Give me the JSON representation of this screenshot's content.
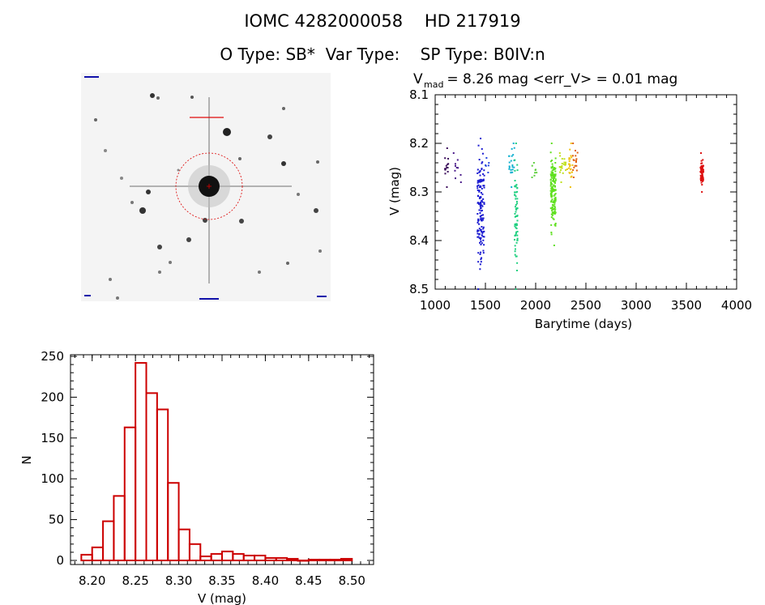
{
  "header": {
    "title": "IOMC 4282000058    HD 217919",
    "subtitle": "O Type: SB*  Var Type:    SP Type: B0IV:n"
  },
  "colors": {
    "histogram": "#cc0000",
    "aperture": "#dd0000",
    "finder_bg": "#f4f4f4",
    "finder_label": "#1111aa"
  },
  "finder": {
    "icon": "star-field-image"
  },
  "chart_data": [
    {
      "type": "scatter",
      "title_prefix": "V",
      "title_sub": "mad",
      "title_rest": " = 8.26 mag <err_V> = 0.01 mag",
      "xlabel": "Barytime (days)",
      "ylabel": "V (mag)",
      "xlim": [
        1000,
        4000
      ],
      "ylim": [
        8.5,
        8.1
      ],
      "y_inverted": true,
      "xticks": [
        1000,
        1500,
        2000,
        2500,
        3000,
        3500,
        4000
      ],
      "yticks": [
        8.1,
        8.2,
        8.3,
        8.4,
        8.5
      ],
      "color_scale": "rainbow by time",
      "groups": [
        {
          "x": [
            1090,
            1150
          ],
          "ymin": 8.21,
          "ymax": 8.29,
          "n": 14,
          "color": "#3a0a5a"
        },
        {
          "x": [
            1180,
            1260
          ],
          "ymin": 8.22,
          "ymax": 8.28,
          "n": 10,
          "color": "#4a1a8a"
        },
        {
          "x": [
            1420,
            1490
          ],
          "ymin": 8.19,
          "ymax": 8.5,
          "n": 140,
          "color": "#1a1ad0"
        },
        {
          "x": [
            1500,
            1540
          ],
          "ymin": 8.23,
          "ymax": 8.26,
          "n": 6,
          "color": "#2244dd"
        },
        {
          "x": [
            1720,
            1790
          ],
          "ymin": 8.2,
          "ymax": 8.29,
          "n": 22,
          "color": "#10b0d0"
        },
        {
          "x": [
            1790,
            1820
          ],
          "ymin": 8.2,
          "ymax": 8.5,
          "n": 70,
          "color": "#20d080"
        },
        {
          "x": [
            1960,
            2010
          ],
          "ymin": 8.24,
          "ymax": 8.27,
          "n": 8,
          "color": "#60d040"
        },
        {
          "x": [
            2150,
            2200
          ],
          "ymin": 8.2,
          "ymax": 8.41,
          "n": 160,
          "color": "#60e020"
        },
        {
          "x": [
            2240,
            2300
          ],
          "ymin": 8.22,
          "ymax": 8.28,
          "n": 22,
          "color": "#c0e020"
        },
        {
          "x": [
            2310,
            2370
          ],
          "ymin": 8.2,
          "ymax": 8.29,
          "n": 24,
          "color": "#f0c010"
        },
        {
          "x": [
            2370,
            2420
          ],
          "ymin": 8.2,
          "ymax": 8.27,
          "n": 16,
          "color": "#e06010"
        },
        {
          "x": [
            3640,
            3670
          ],
          "ymin": 8.22,
          "ymax": 8.3,
          "n": 70,
          "color": "#dd1111"
        }
      ]
    },
    {
      "type": "bar",
      "xlabel": "V (mag)",
      "ylabel": "N",
      "xlim": [
        8.175,
        8.525
      ],
      "ylim": [
        -5,
        252
      ],
      "xticks": [
        8.2,
        8.25,
        8.3,
        8.35,
        8.4,
        8.45,
        8.5
      ],
      "yticks": [
        0,
        50,
        100,
        150,
        200,
        250
      ],
      "bin_width": 0.0125,
      "bin_starts": [
        8.1875,
        8.2,
        8.2125,
        8.225,
        8.2375,
        8.25,
        8.2625,
        8.275,
        8.2875,
        8.3,
        8.3125,
        8.325,
        8.3375,
        8.35,
        8.3625,
        8.375,
        8.3875,
        8.4,
        8.4125,
        8.425,
        8.4375,
        8.45,
        8.4625,
        8.475,
        8.4875
      ],
      "values": [
        7,
        16,
        48,
        79,
        163,
        242,
        205,
        185,
        95,
        38,
        20,
        5,
        8,
        11,
        8,
        6,
        6,
        3,
        3,
        2,
        0,
        1,
        1,
        1,
        2
      ]
    }
  ]
}
